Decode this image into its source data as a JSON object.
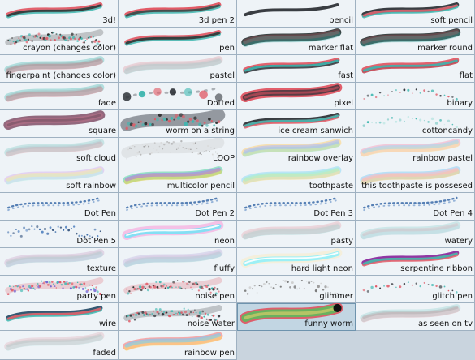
{
  "brushes": [
    {
      "label": "3d!",
      "style": "rgb-split",
      "colors": [
        "#e05a66",
        "#3fb7b0",
        "#333333"
      ]
    },
    {
      "label": "3d pen 2",
      "style": "rgb-split",
      "colors": [
        "#e0515e",
        "#3fb7b0",
        "#444444"
      ]
    },
    {
      "label": "pencil",
      "style": "stroke",
      "colors": [
        "#2e3338",
        "#2e3338",
        "#2e3338"
      ]
    },
    {
      "label": "soft pencil",
      "style": "rgb-split",
      "colors": [
        "#2e3338",
        "#3fb7b0",
        "#e05a66"
      ]
    },
    {
      "label": "crayon (changes color)",
      "style": "speckle",
      "colors": [
        "#333333",
        "#3fb7b0",
        "#e05a66"
      ]
    },
    {
      "label": "pen",
      "style": "rgb-split",
      "colors": [
        "#e05a66",
        "#3fb7b0",
        "#333333"
      ]
    },
    {
      "label": "marker flat",
      "style": "marker",
      "colors": [
        "#2f3a3a",
        "#3fb7b0",
        "#e05a66"
      ]
    },
    {
      "label": "marker round",
      "style": "marker",
      "colors": [
        "#2f3a3a",
        "#3fb7b0",
        "#e05a66"
      ]
    },
    {
      "label": "fingerpaint (changes color)",
      "style": "soft",
      "colors": [
        "#3fb7b0",
        "#e05a66",
        "#888888"
      ]
    },
    {
      "label": "pastel",
      "style": "soft",
      "colors": [
        "#e0969d",
        "#8fd1ce",
        "#bbbbbb"
      ]
    },
    {
      "label": "fast",
      "style": "rgb-split",
      "colors": [
        "#e05a66",
        "#2e3338",
        "#3fb7b0"
      ]
    },
    {
      "label": "flat",
      "style": "rgb-split",
      "colors": [
        "#e05a66",
        "#c23d4a",
        "#3fb7b0"
      ]
    },
    {
      "label": "fade",
      "style": "soft",
      "colors": [
        "#3fb7b0",
        "#e05a66",
        "#999999"
      ]
    },
    {
      "label": "Dotted",
      "style": "dotted",
      "colors": [
        "#2e3338",
        "#3fb7b0",
        "#e05a66"
      ]
    },
    {
      "label": "pixel",
      "style": "thick",
      "colors": [
        "#e0515e",
        "#2e3338",
        "#e0515e"
      ]
    },
    {
      "label": "binary",
      "style": "dots",
      "colors": [
        "#e05a66",
        "#2e3338",
        "#3fb7b0"
      ]
    },
    {
      "label": "square",
      "style": "thick",
      "colors": [
        "#8a5c72",
        "#b06f86",
        "#6f4f5f"
      ]
    },
    {
      "label": "worm on a string",
      "style": "blob",
      "colors": [
        "#4a4f5a",
        "#e05a66",
        "#3fb7b0"
      ]
    },
    {
      "label": "ice cream sanwich",
      "style": "rgb-split",
      "colors": [
        "#2e3338",
        "#e05a66",
        "#3fb7b0"
      ]
    },
    {
      "label": "cottoncandy",
      "style": "dots",
      "colors": [
        "#8fd1ce",
        "#3fb7b0",
        "#bfe7e4"
      ]
    },
    {
      "label": "soft cloud",
      "style": "soft",
      "colors": [
        "#7fc9c4",
        "#e59aa2",
        "#9fb6c2"
      ]
    },
    {
      "label": "LOOP",
      "style": "noise-band",
      "colors": [
        "#b9b9b9",
        "#d8d8d8",
        "#999999"
      ]
    },
    {
      "label": "rainbow overlay",
      "style": "rainbow",
      "colors": [
        "#ffd27a",
        "#9fe1c0",
        "#a7b8ff"
      ]
    },
    {
      "label": "rainbow pastel",
      "style": "rainbow",
      "colors": [
        "#f7a6c1",
        "#f9e39d",
        "#9fd9ef"
      ]
    },
    {
      "label": "soft rainbow",
      "style": "rainbow",
      "colors": [
        "#d8b7f0",
        "#b9f0e5",
        "#f6e7a8"
      ]
    },
    {
      "label": "multicolor pencil",
      "style": "rainbow",
      "colors": [
        "#4fd3a1",
        "#f2d14a",
        "#b070e8"
      ]
    },
    {
      "label": "toothpaste",
      "style": "rainbow",
      "colors": [
        "#8fd9f5",
        "#ffe08a",
        "#a6f1c8"
      ]
    },
    {
      "label": "this toothpaste is possesed",
      "style": "rainbow",
      "colors": [
        "#8ad0f5",
        "#ffd080",
        "#ffb6c1"
      ]
    },
    {
      "label": "Dot Pen",
      "style": "dotted-line",
      "colors": [
        "#3a6aa8",
        "#5a88c3",
        "#2f4f7a"
      ]
    },
    {
      "label": "Dot Pen 2",
      "style": "dotted-line",
      "colors": [
        "#3a6aa8",
        "#5a88c3",
        "#2f4f7a"
      ]
    },
    {
      "label": "Dot Pen 3",
      "style": "dotted-line",
      "colors": [
        "#3a6aa8",
        "#5a88c3",
        "#2f4f7a"
      ]
    },
    {
      "label": "Dot Pen 4",
      "style": "dotted-line",
      "colors": [
        "#3a6aa8",
        "#5a88c3",
        "#2f4f7a"
      ]
    },
    {
      "label": "Dot Pen 5",
      "style": "scattered",
      "colors": [
        "#3a6aa8",
        "#5a88c3",
        "#2f4f7a"
      ]
    },
    {
      "label": "neon",
      "style": "neon",
      "colors": [
        "#ff63c6",
        "#5fe8f8",
        "#ffffff"
      ]
    },
    {
      "label": "pasty",
      "style": "soft",
      "colors": [
        "#e6a0a8",
        "#8fd1ce",
        "#c8c8c8"
      ]
    },
    {
      "label": "watery",
      "style": "soft",
      "colors": [
        "#8fd1ce",
        "#b6d3df",
        "#e6a0a8"
      ]
    },
    {
      "label": "texture",
      "style": "soft",
      "colors": [
        "#c9a0c6",
        "#9fd0d8",
        "#b9b9b9"
      ]
    },
    {
      "label": "fluffy",
      "style": "soft",
      "colors": [
        "#b8a9d9",
        "#8fd1ce",
        "#d9b3d1"
      ]
    },
    {
      "label": "hard light neon",
      "style": "neon",
      "colors": [
        "#ffe8a8",
        "#7ff0ff",
        "#ffffff"
      ]
    },
    {
      "label": "serpentine ribbon",
      "style": "rgb-split",
      "colors": [
        "#8a2b9f",
        "#e05a66",
        "#3fb7b0"
      ]
    },
    {
      "label": "party pen",
      "style": "speckle",
      "colors": [
        "#e05a66",
        "#3fb7b0",
        "#6a5ad0"
      ]
    },
    {
      "label": "noise pen",
      "style": "speckle",
      "colors": [
        "#e05a66",
        "#3fb7b0",
        "#333333"
      ]
    },
    {
      "label": "glimmer",
      "style": "sparkle",
      "colors": [
        "#777777",
        "#999999",
        "#cccccc"
      ]
    },
    {
      "label": "glitch pen",
      "style": "dots",
      "colors": [
        "#e05a66",
        "#2e3338",
        "#3fb7b0"
      ]
    },
    {
      "label": "wire",
      "style": "rgb-split",
      "colors": [
        "#2a4f6a",
        "#3fb7b0",
        "#e05a66"
      ]
    },
    {
      "label": "noise water",
      "style": "speckle",
      "colors": [
        "#2e3338",
        "#3fb7b0",
        "#e05a66"
      ]
    },
    {
      "label": "funny worm",
      "style": "worm",
      "colors": [
        "#e0515e",
        "#56c05d",
        "#111111"
      ]
    },
    {
      "label": "as seen on tv",
      "style": "soft",
      "colors": [
        "#8fd1ce",
        "#e59aa2",
        "#8a8a8a"
      ]
    },
    {
      "label": "faded",
      "style": "soft",
      "colors": [
        "#e0b0b6",
        "#a9dad8",
        "#b0b0b0"
      ]
    },
    {
      "label": "rainbow pen",
      "style": "rainbow",
      "colors": [
        "#ff6a6a",
        "#ffd96a",
        "#6ad1ff"
      ]
    }
  ],
  "selected_label": "funny worm"
}
